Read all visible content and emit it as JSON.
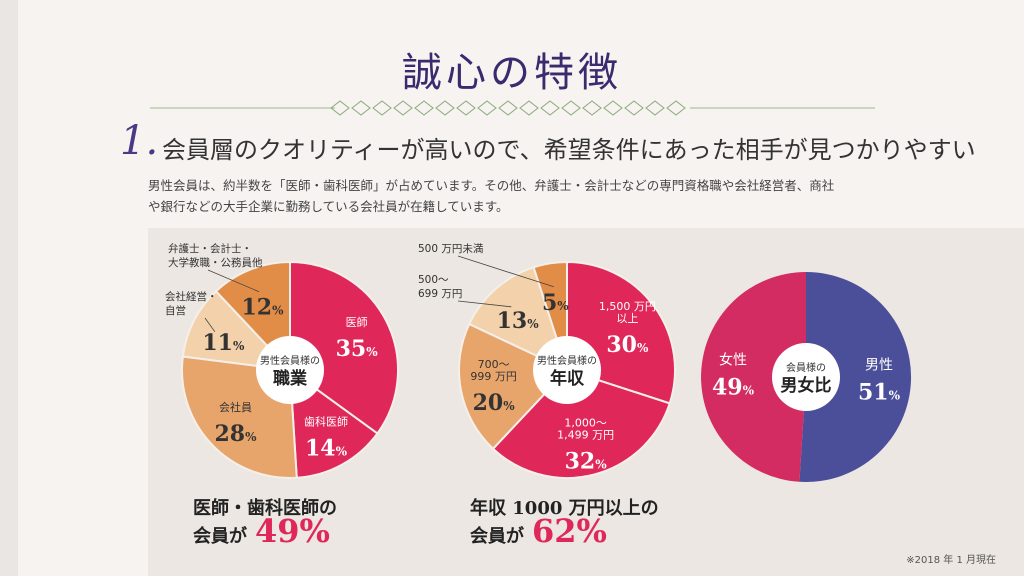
{
  "page": {
    "title": "誠心の特徴",
    "section_number": "1.",
    "heading": "会員層のクオリティーが高いので、希望条件にあった相手が見つかりやすい",
    "intro_line1": "男性会員は、約半数を「医師・歯科医師」が占めています。その他、弁護士・会計士などの専門資格職や会社経営者、商社",
    "intro_line2": "や銀行などの大手企業に勤務している会社員が在籍しています。",
    "footnote": "※2018 年 1 月現在"
  },
  "colors": {
    "magenta": "#e0275a",
    "tan": "#e8a56b",
    "orange": "#e18d48",
    "pale": "#f3d1aa",
    "blue": "#4b4f9a",
    "female": "#d32c63",
    "title": "#3b2a6e"
  },
  "summaries": [
    {
      "line1": "医師・歯科医師の",
      "line2": "会員が",
      "value": "49%"
    },
    {
      "line1": "年収 1000 万円以上の",
      "line2": "会員が",
      "value": "62%"
    }
  ],
  "chart_data": [
    {
      "type": "pie",
      "center_label": [
        "男性会員様の",
        "職業"
      ],
      "slices": [
        {
          "label": "医師",
          "value": 35,
          "color": "#e0275a",
          "text_color": "#ffffff"
        },
        {
          "label": "歯科医師",
          "value": 14,
          "color": "#e0275a",
          "text_color": "#ffffff"
        },
        {
          "label": "会社員",
          "value": 28,
          "color": "#e8a56b",
          "text_color": "#333333"
        },
        {
          "label": "",
          "value": 11,
          "color": "#f3d1aa",
          "text_color": "#333333"
        },
        {
          "label": "",
          "value": 12,
          "color": "#e18d48",
          "text_color": "#333333"
        }
      ],
      "callouts": [
        {
          "lines": [
            "会社経営・",
            "自営"
          ],
          "slice": 3
        },
        {
          "lines": [
            "弁護士・会計士・",
            "大学教職・公務員他"
          ],
          "slice": 4
        }
      ]
    },
    {
      "type": "pie",
      "center_label": [
        "男性会員様の",
        "年収"
      ],
      "slices": [
        {
          "label": "1,500 万円\n以上",
          "value": 30,
          "color": "#e0275a",
          "text_color": "#ffffff"
        },
        {
          "label": "1,000～\n1,499 万円",
          "value": 32,
          "color": "#e0275a",
          "text_color": "#ffffff"
        },
        {
          "label": "700～\n999 万円",
          "value": 20,
          "color": "#e8a56b",
          "text_color": "#333333"
        },
        {
          "label": "",
          "value": 13,
          "color": "#f3d1aa",
          "text_color": "#333333"
        },
        {
          "label": "",
          "value": 5,
          "color": "#e18d48",
          "text_color": "#333333"
        }
      ],
      "callouts": [
        {
          "lines": [
            "500～",
            "699 万円"
          ],
          "slice": 3
        },
        {
          "lines": [
            "500 万円未満"
          ],
          "slice": 4
        }
      ]
    },
    {
      "type": "pie",
      "center_label": [
        "会員様の",
        "男女比"
      ],
      "slices": [
        {
          "label": "男性",
          "value": 51,
          "color": "#4b4f9a",
          "text_color": "#ffffff"
        },
        {
          "label": "女性",
          "value": 49,
          "color": "#d32c63",
          "text_color": "#ffffff"
        }
      ],
      "callouts": []
    }
  ]
}
